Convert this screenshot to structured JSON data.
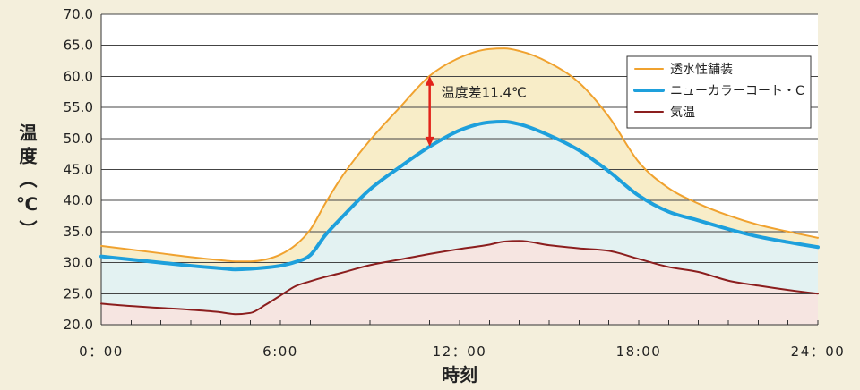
{
  "chart_data": {
    "type": "line",
    "xlabel": "時刻",
    "ylabel": "温度（℃）",
    "xlim": [
      "0:00",
      "24:00"
    ],
    "ylim": [
      20,
      70
    ],
    "grid": true,
    "legend": "top-right",
    "xticks": [
      "0：00",
      "6:00",
      "12：00",
      "18:00",
      "24：00"
    ],
    "yticks": [
      "20.0",
      "25.0",
      "30.0",
      "35.0",
      "40.0",
      "45.0",
      "50.0",
      "55.0",
      "60.0",
      "65.0",
      "70.0"
    ],
    "x": [
      "0:00",
      "1:00",
      "2:00",
      "3:00",
      "4:00",
      "4:30",
      "5:00",
      "5:30",
      "6:00",
      "6:30",
      "7:00",
      "7:30",
      "8:00",
      "9:00",
      "10:00",
      "11:00",
      "12:00",
      "13:00",
      "13:30",
      "14:00",
      "15:00",
      "16:00",
      "17:00",
      "18:00",
      "19:00",
      "20:00",
      "21:00",
      "22:00",
      "23:00",
      "24:00"
    ],
    "series": [
      {
        "name": "透水性舗装",
        "color": "#f0a22f",
        "fill": "#f8edc8",
        "values": [
          32.7,
          32.1,
          31.5,
          30.9,
          30.4,
          30.2,
          30.2,
          30.5,
          31.3,
          32.8,
          35.3,
          39.5,
          43.4,
          49.7,
          55.0,
          60.1,
          63.0,
          64.4,
          64.5,
          64.1,
          62.2,
          59.0,
          53.5,
          46.2,
          42.0,
          39.5,
          37.6,
          36.1,
          35.0,
          34.0
        ]
      },
      {
        "name": "ニューカラーコート・C",
        "color": "#1ea0dc",
        "fill": "#e3f2f2",
        "values": [
          31.0,
          30.5,
          30.0,
          29.5,
          29.1,
          28.9,
          29.0,
          29.2,
          29.5,
          30.1,
          31.2,
          34.4,
          37.0,
          41.8,
          45.4,
          48.7,
          51.3,
          52.6,
          52.7,
          52.3,
          50.5,
          48.1,
          44.7,
          40.8,
          38.2,
          36.8,
          35.4,
          34.2,
          33.3,
          32.5
        ]
      },
      {
        "name": "気温",
        "color": "#8b1e1e",
        "fill": "#f6e5e1",
        "values": [
          23.4,
          23.0,
          22.7,
          22.4,
          22.0,
          21.7,
          21.9,
          23.2,
          24.7,
          26.2,
          27.0,
          27.7,
          28.3,
          29.6,
          30.5,
          31.4,
          32.2,
          32.9,
          33.4,
          33.5,
          32.8,
          32.3,
          31.9,
          30.6,
          29.3,
          28.5,
          27.1,
          26.3,
          25.6,
          25.0
        ]
      }
    ],
    "annotation": {
      "text": "温度差11.4℃",
      "x": "11:00",
      "from": 60.1,
      "to": 48.7,
      "color": "#e2231a"
    }
  }
}
